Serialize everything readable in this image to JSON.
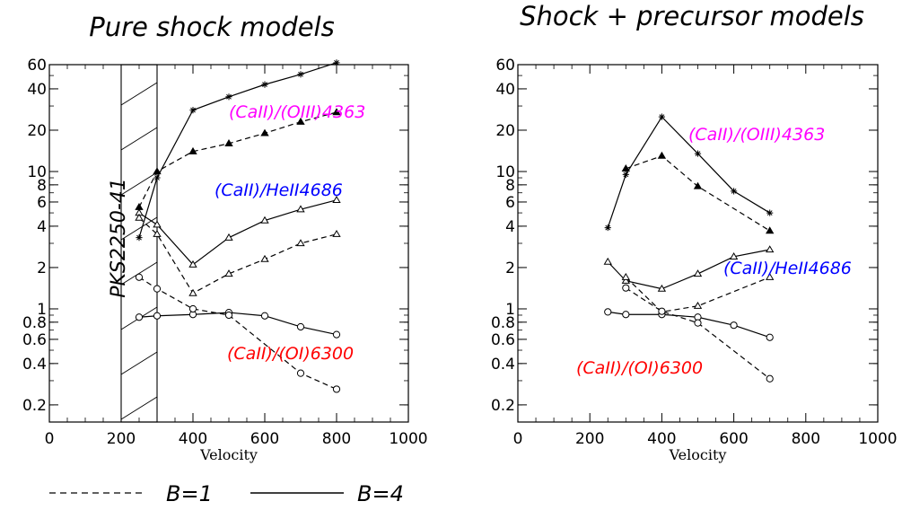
{
  "chart_data": [
    {
      "type": "line",
      "title": "Pure shock models",
      "xlabel": "Velocity",
      "ylabel": "",
      "xlim": [
        0,
        1000
      ],
      "ylim": [
        0.15,
        60
      ],
      "yscale": "log",
      "xticks": [
        0,
        200,
        400,
        600,
        800,
        1000
      ],
      "yticks": [
        0.2,
        0.4,
        0.6,
        0.8,
        1,
        2,
        4,
        6,
        8,
        10,
        20,
        40,
        60
      ],
      "shaded_band": {
        "x": [
          200,
          300
        ],
        "label": "PKS2250-41"
      },
      "annotations": [
        {
          "text": "(CaII)/(OIII)4363",
          "color": "#ff00ff"
        },
        {
          "text": "(CaII)/HeII4686",
          "color": "#0000ff"
        },
        {
          "text": "(CaII)/(OI)6300",
          "color": "#ff0000"
        }
      ],
      "series": [
        {
          "group": "(CaII)/(OIII)4363",
          "B": 4,
          "linestyle": "solid",
          "marker": "star",
          "x": [
            250,
            300,
            400,
            500,
            600,
            700,
            800
          ],
          "y": [
            3.3,
            9.0,
            28,
            35,
            43,
            51,
            62
          ]
        },
        {
          "group": "(CaII)/(OIII)4363",
          "B": 1,
          "linestyle": "dashed",
          "marker": "filled-triangle",
          "x": [
            250,
            300,
            400,
            500,
            600,
            700,
            800
          ],
          "y": [
            5.5,
            10,
            14,
            16,
            19,
            23,
            27
          ]
        },
        {
          "group": "(CaII)/HeII4686",
          "B": 4,
          "linestyle": "solid",
          "marker": "open-triangle",
          "x": [
            250,
            300,
            400,
            500,
            600,
            700,
            800
          ],
          "y": [
            5.0,
            4.1,
            2.1,
            3.3,
            4.4,
            5.3,
            6.2
          ]
        },
        {
          "group": "(CaII)/HeII4686",
          "B": 1,
          "linestyle": "dashed",
          "marker": "open-triangle",
          "x": [
            250,
            300,
            400,
            500,
            600,
            700,
            800
          ],
          "y": [
            4.6,
            3.5,
            1.3,
            1.8,
            2.3,
            3.0,
            3.5
          ]
        },
        {
          "group": "(CaII)/(OI)6300",
          "B": 4,
          "linestyle": "solid",
          "marker": "open-circle",
          "x": [
            250,
            300,
            400,
            500,
            600,
            700,
            800
          ],
          "y": [
            0.87,
            0.89,
            0.91,
            0.94,
            0.89,
            0.74,
            0.65
          ]
        },
        {
          "group": "(CaII)/(OI)6300",
          "B": 1,
          "linestyle": "dashed",
          "marker": "open-circle",
          "x": [
            250,
            300,
            400,
            500,
            600,
            700,
            800
          ],
          "y": [
            1.7,
            1.4,
            1.0,
            0.9,
            null,
            0.34,
            0.26
          ]
        }
      ]
    },
    {
      "type": "line",
      "title": "Shock + precursor models",
      "xlabel": "Velocity",
      "ylabel": "",
      "xlim": [
        0,
        1000
      ],
      "ylim": [
        0.15,
        60
      ],
      "yscale": "log",
      "xticks": [
        0,
        200,
        400,
        600,
        800,
        1000
      ],
      "yticks": [
        0.2,
        0.4,
        0.6,
        0.8,
        1,
        2,
        4,
        6,
        8,
        10,
        20,
        40,
        60
      ],
      "annotations": [
        {
          "text": "(CaII)/(OIII)4363",
          "color": "#ff00ff"
        },
        {
          "text": "(CaII)/HeII4686",
          "color": "#0000ff"
        },
        {
          "text": "(CaII)/(OI)6300",
          "color": "#ff0000"
        }
      ],
      "series": [
        {
          "group": "(CaII)/(OIII)4363",
          "B": 4,
          "linestyle": "solid",
          "marker": "star",
          "x": [
            250,
            300,
            400,
            500,
            600,
            700
          ],
          "y": [
            3.9,
            9.5,
            25,
            13.5,
            7.2,
            5.0
          ]
        },
        {
          "group": "(CaII)/(OIII)4363",
          "B": 1,
          "linestyle": "dashed",
          "marker": "filled-triangle",
          "x": [
            300,
            400,
            500,
            600,
            700
          ],
          "y": [
            10.5,
            13,
            7.8,
            null,
            3.7
          ]
        },
        {
          "group": "(CaII)/HeII4686",
          "B": 4,
          "linestyle": "solid",
          "marker": "open-triangle",
          "x": [
            250,
            300,
            400,
            500,
            600,
            700
          ],
          "y": [
            2.2,
            1.6,
            1.4,
            1.8,
            2.4,
            2.7
          ]
        },
        {
          "group": "(CaII)/HeII4686",
          "B": 1,
          "linestyle": "dashed",
          "marker": "open-triangle",
          "x": [
            300,
            400,
            500,
            700
          ],
          "y": [
            1.7,
            0.95,
            1.05,
            1.7
          ]
        },
        {
          "group": "(CaII)/(OI)6300",
          "B": 4,
          "linestyle": "solid",
          "marker": "open-circle",
          "x": [
            250,
            300,
            400,
            500,
            600,
            700
          ],
          "y": [
            0.95,
            0.91,
            0.91,
            0.87,
            0.76,
            0.62
          ]
        },
        {
          "group": "(CaII)/(OI)6300",
          "B": 1,
          "linestyle": "dashed",
          "marker": "open-circle",
          "x": [
            300,
            400,
            500,
            700
          ],
          "y": [
            1.42,
            0.96,
            0.79,
            0.31
          ]
        }
      ]
    }
  ],
  "legend": {
    "dashed_label": "B=1",
    "solid_label": "B=4"
  }
}
